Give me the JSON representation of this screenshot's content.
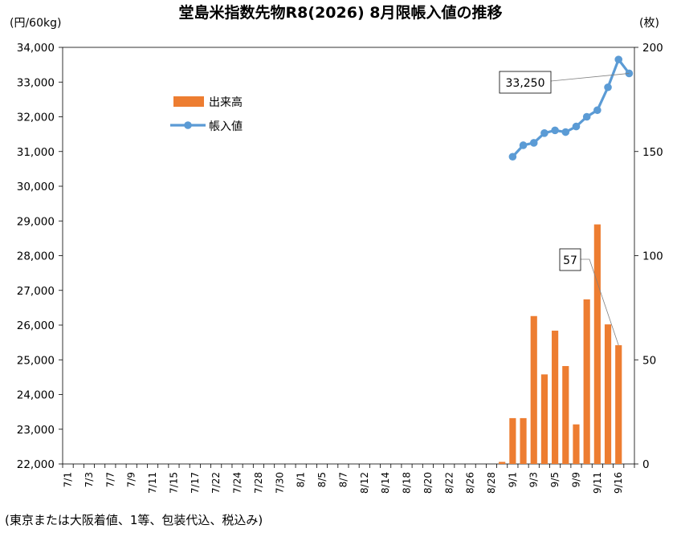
{
  "chart_data": {
    "type": "bar+line",
    "title": "堂島米指数先物R8(2026) 8月限帳入値の推移",
    "ylabel_left": "(円/60kg)",
    "ylabel_right": "(枚)",
    "footnote": "(東京または大阪着値、1等、包装代込、税込み)",
    "ylim_left": [
      22000,
      34000
    ],
    "yticks_left": [
      "22,000",
      "23,000",
      "24,000",
      "25,000",
      "26,000",
      "27,000",
      "28,000",
      "29,000",
      "30,000",
      "31,000",
      "32,000",
      "33,000",
      "34,000"
    ],
    "ylim_right": [
      0,
      200
    ],
    "yticks_right": [
      "0",
      "50",
      "100",
      "150",
      "200"
    ],
    "x_tick_labels": [
      "7/1",
      "7/3",
      "7/7",
      "7/9",
      "7/11",
      "7/15",
      "7/17",
      "7/22",
      "7/24",
      "7/28",
      "7/30",
      "8/1",
      "8/5",
      "8/7",
      "8/12",
      "8/14",
      "8/18",
      "8/20",
      "8/22",
      "8/26",
      "8/28",
      "9/1",
      "9/3",
      "9/5",
      "9/9",
      "9/11",
      "9/16"
    ],
    "legend_position": "upper-left",
    "grid": false,
    "series": [
      {
        "name": "出来高",
        "kind": "bar",
        "axis": "right",
        "color": "#ED7D31",
        "points": [
          [
            41,
            1
          ],
          [
            42,
            22
          ],
          [
            43,
            22
          ],
          [
            44,
            71
          ],
          [
            45,
            43
          ],
          [
            46,
            64
          ],
          [
            47,
            47
          ],
          [
            48,
            19
          ],
          [
            49,
            79
          ],
          [
            50,
            115
          ],
          [
            51,
            67
          ],
          [
            52,
            57
          ]
        ]
      },
      {
        "name": "帳入値",
        "kind": "line",
        "axis": "left",
        "color": "#5B9BD5",
        "points": [
          [
            42,
            30850
          ],
          [
            43,
            31180
          ],
          [
            44,
            31250
          ],
          [
            45,
            31530
          ],
          [
            46,
            31610
          ],
          [
            47,
            31560
          ],
          [
            48,
            31720
          ],
          [
            49,
            32000
          ],
          [
            50,
            32190
          ],
          [
            51,
            32850
          ],
          [
            52,
            33650
          ],
          [
            53,
            33250
          ]
        ]
      }
    ],
    "callouts": [
      {
        "text": "33,250",
        "series": "帳入値"
      },
      {
        "text": "57",
        "series": "出来高"
      }
    ]
  }
}
